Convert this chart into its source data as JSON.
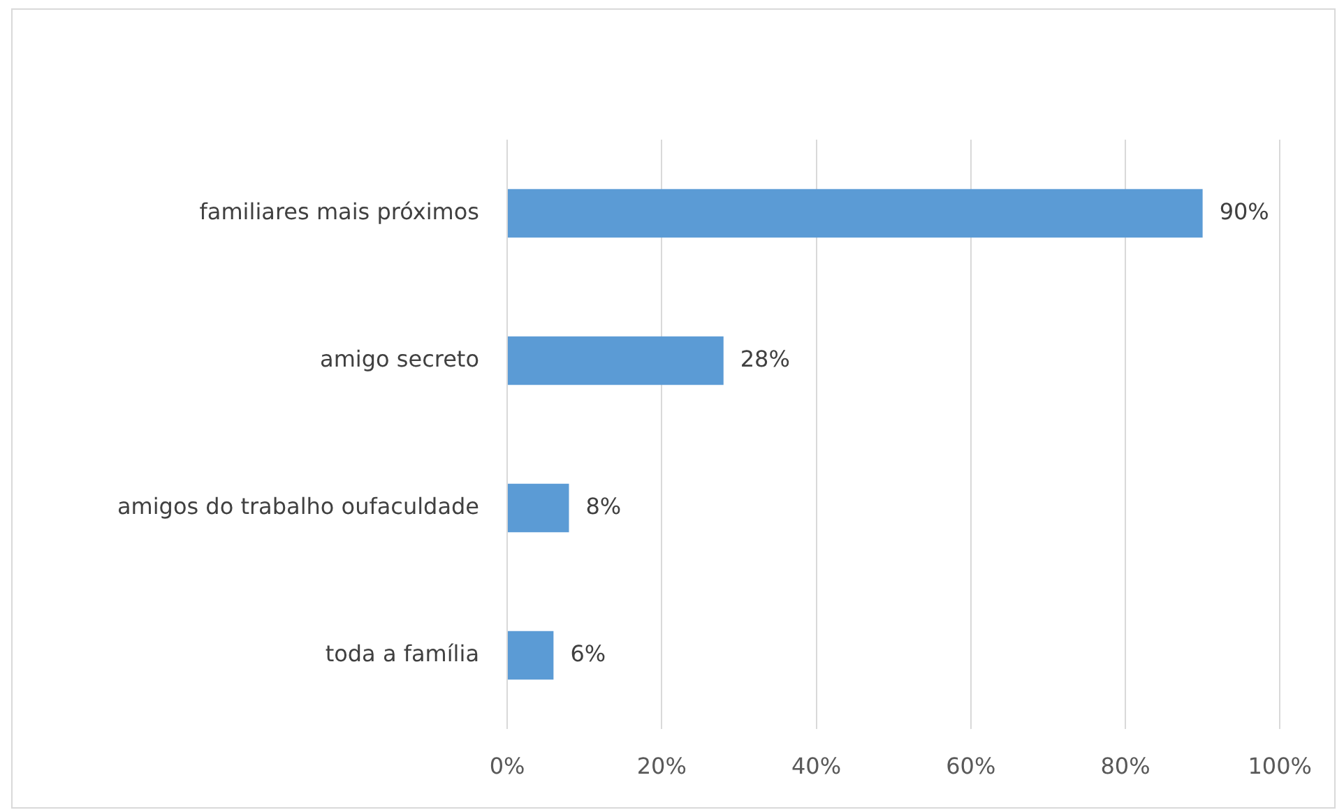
{
  "chart_data": {
    "type": "bar",
    "orientation": "horizontal",
    "categories": [
      "familiares mais próximos",
      "amigo secreto",
      "amigos do trabalho oufaculdade",
      "toda a família"
    ],
    "values": [
      90,
      28,
      8,
      6
    ],
    "value_labels": [
      "90%",
      "28%",
      "8%",
      "6%"
    ],
    "color": "#5b9bd5",
    "xlim": [
      0,
      100
    ],
    "xticks": [
      {
        "value": 0,
        "label": "0%"
      },
      {
        "value": 20,
        "label": "20%"
      },
      {
        "value": 40,
        "label": "40%"
      },
      {
        "value": 60,
        "label": "60%"
      },
      {
        "value": 80,
        "label": "80%"
      },
      {
        "value": 100,
        "label": "100%"
      }
    ],
    "grid": "x"
  }
}
